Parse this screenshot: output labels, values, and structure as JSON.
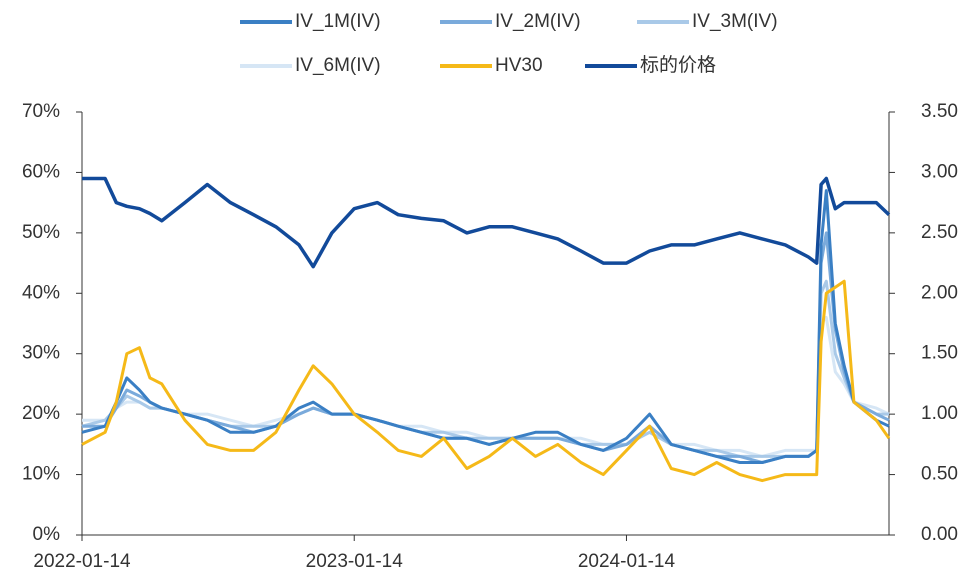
{
  "chart_data": {
    "type": "line",
    "x": [
      "2022-01-14",
      "2022-02-14",
      "2022-03-01",
      "2022-03-15",
      "2022-04-01",
      "2022-04-15",
      "2022-05-01",
      "2022-06-01",
      "2022-07-01",
      "2022-08-01",
      "2022-09-01",
      "2022-10-01",
      "2022-11-01",
      "2022-11-20",
      "2022-12-15",
      "2023-01-14",
      "2023-02-14",
      "2023-03-14",
      "2023-04-14",
      "2023-05-14",
      "2023-06-14",
      "2023-07-14",
      "2023-08-14",
      "2023-09-14",
      "2023-10-14",
      "2023-11-14",
      "2023-12-14",
      "2024-01-14",
      "2024-02-14",
      "2024-03-14",
      "2024-04-14",
      "2024-05-14",
      "2024-06-14",
      "2024-07-14",
      "2024-08-14",
      "2024-09-14",
      "2024-09-25",
      "2024-10-01",
      "2024-10-08",
      "2024-10-20",
      "2024-11-01",
      "2024-11-14",
      "2024-12-14",
      "2024-12-31"
    ],
    "series": [
      {
        "name": "IV_1M(IV)",
        "color": "#3a7fc4",
        "values": [
          17,
          18,
          22,
          26,
          24,
          22,
          21,
          20,
          19,
          17,
          17,
          18,
          21,
          22,
          20,
          20,
          19,
          18,
          17,
          16,
          16,
          15,
          16,
          17,
          17,
          15,
          14,
          16,
          20,
          15,
          14,
          13,
          12,
          12,
          13,
          13,
          14,
          48,
          57,
          35,
          28,
          22,
          19,
          18
        ]
      },
      {
        "name": "IV_2M(IV)",
        "color": "#7aaadb",
        "values": [
          18,
          18,
          21,
          24,
          23,
          22,
          21,
          20,
          19,
          18,
          17,
          18,
          20,
          21,
          20,
          20,
          19,
          18,
          17,
          16,
          16,
          15,
          16,
          16,
          16,
          15,
          14,
          15,
          18,
          15,
          14,
          13,
          13,
          12,
          13,
          13,
          14,
          45,
          50,
          34,
          27,
          22,
          20,
          19
        ]
      },
      {
        "name": "IV_3M(IV)",
        "color": "#a9c9e8",
        "values": [
          18,
          19,
          21,
          23,
          22,
          21,
          21,
          20,
          19,
          18,
          18,
          18,
          20,
          21,
          20,
          20,
          19,
          18,
          17,
          17,
          16,
          16,
          16,
          16,
          16,
          15,
          15,
          15,
          17,
          15,
          14,
          14,
          13,
          13,
          13,
          13,
          14,
          40,
          42,
          30,
          26,
          22,
          20,
          20
        ]
      },
      {
        "name": "IV_6M(IV)",
        "color": "#d6e6f5",
        "values": [
          19,
          19,
          21,
          22,
          22,
          21,
          21,
          20,
          20,
          19,
          18,
          19,
          20,
          21,
          20,
          20,
          19,
          18,
          18,
          17,
          17,
          16,
          16,
          16,
          16,
          16,
          15,
          15,
          17,
          15,
          15,
          14,
          14,
          13,
          14,
          14,
          14,
          35,
          36,
          27,
          25,
          22,
          21,
          20
        ]
      },
      {
        "name": "HV30",
        "color": "#f5b918",
        "values": [
          15,
          17,
          22,
          30,
          31,
          26,
          25,
          19,
          15,
          14,
          14,
          17,
          24,
          28,
          25,
          20,
          17,
          14,
          13,
          16,
          11,
          13,
          16,
          13,
          15,
          12,
          10,
          14,
          18,
          11,
          10,
          12,
          10,
          9,
          10,
          10,
          10,
          32,
          40,
          41,
          42,
          22,
          19,
          16
        ]
      },
      {
        "name": "标的价格",
        "color": "#124a9a",
        "axis": "y2",
        "values": [
          2.95,
          2.95,
          2.75,
          2.72,
          2.7,
          2.66,
          2.6,
          2.75,
          2.9,
          2.75,
          2.65,
          2.55,
          2.4,
          2.22,
          2.5,
          2.7,
          2.75,
          2.65,
          2.62,
          2.6,
          2.5,
          2.55,
          2.55,
          2.5,
          2.45,
          2.35,
          2.25,
          2.25,
          2.35,
          2.4,
          2.4,
          2.45,
          2.5,
          2.45,
          2.4,
          2.3,
          2.25,
          2.9,
          2.95,
          2.7,
          2.75,
          2.75,
          2.75,
          2.65
        ]
      }
    ],
    "xlim": [
      "2022-01-14",
      "2024-12-31"
    ],
    "xticks": [
      "2022-01-14",
      "2023-01-14",
      "2024-01-14"
    ],
    "ylim": [
      0,
      70
    ],
    "yticks": [
      {
        "value": 0,
        "label": "0%"
      },
      {
        "value": 10,
        "label": "10%"
      },
      {
        "value": 20,
        "label": "20%"
      },
      {
        "value": 30,
        "label": "30%"
      },
      {
        "value": 40,
        "label": "40%"
      },
      {
        "value": 50,
        "label": "50%"
      },
      {
        "value": 60,
        "label": "60%"
      },
      {
        "value": 70,
        "label": "70%"
      }
    ],
    "y2lim": [
      0,
      3.5
    ],
    "y2ticks": [
      {
        "value": 0,
        "label": "0.00"
      },
      {
        "value": 0.5,
        "label": "0.50"
      },
      {
        "value": 1,
        "label": "1.00"
      },
      {
        "value": 1.5,
        "label": "1.50"
      },
      {
        "value": 2,
        "label": "2.00"
      },
      {
        "value": 2.5,
        "label": "2.50"
      },
      {
        "value": 3,
        "label": "3.00"
      },
      {
        "value": 3.5,
        "label": "3.50"
      }
    ],
    "legend": "top"
  }
}
